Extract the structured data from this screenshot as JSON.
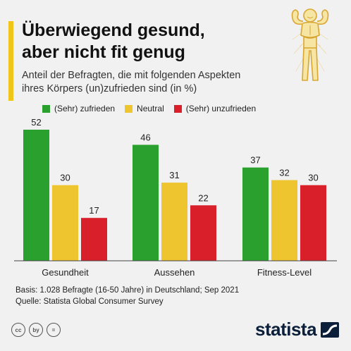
{
  "header": {
    "title_line1": "Überwiegend gesund,",
    "title_line2": "aber nicht fit genug",
    "subtitle_line1": "Anteil der Befragten, die mit folgenden Aspekten",
    "subtitle_line2": "ihres Körpers (un)zufrieden sind (in %)"
  },
  "colors": {
    "green": "#2aa02f",
    "yellow": "#eec42f",
    "red": "#d91f2a",
    "accent": "#f0c419"
  },
  "chart_data": {
    "type": "bar",
    "categories": [
      "Gesundheit",
      "Aussehen",
      "Fitness-Level"
    ],
    "series": [
      {
        "name": "(Sehr) zufrieden",
        "values": [
          52,
          46,
          37
        ],
        "color": "#2aa02f"
      },
      {
        "name": "Neutral",
        "values": [
          30,
          31,
          32
        ],
        "color": "#eec42f"
      },
      {
        "name": "(Sehr) unzufrieden",
        "values": [
          17,
          22,
          30
        ],
        "color": "#d91f2a"
      }
    ],
    "ylim": [
      0,
      52
    ],
    "grid": false,
    "legend_position": "top"
  },
  "footer": {
    "basis": "Basis: 1.028 Befragte (16-50 Jahre) in Deutschland; Sep 2021",
    "source": "Quelle: Statista Global Consumer Survey"
  },
  "license_icons": [
    "cc",
    "by",
    "="
  ],
  "brand": "statista"
}
